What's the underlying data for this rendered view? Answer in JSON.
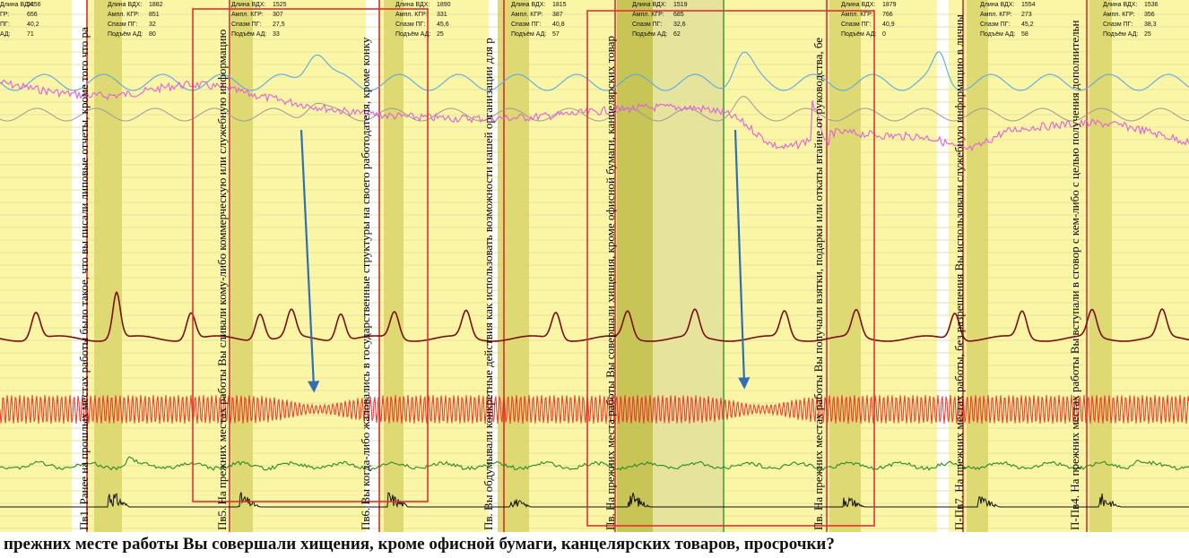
{
  "colors": {
    "band_light": "#fbf6a6",
    "band_olive": "#d8d468",
    "band_olive_dark": "#bdbc48",
    "selection_box": "#e03030",
    "arrow": "#2f6fb5",
    "breath_upper": "#5aa9e6",
    "breath_lower": "#9a9a9a",
    "skin_pink": "#e060d8",
    "cardio_dark": "#7a0e0e",
    "pressure_red": "#f02020",
    "plethysmo_green": "#2a8a2a",
    "motion_black": "#111111",
    "marker_red": "#d82020",
    "marker_green": "#2f9a3a"
  },
  "question_labels": [
    {
      "text": "Пв1. Ранее на прошлых местах работы было такое, что вы писали липовые отчеты, кроме того что ра"
    },
    {
      "text": "Пв5. На прежних местах работы Вы сливали кому-либо коммерческую или служебную информацию"
    },
    {
      "text": "Пв6. Вы когда-либо жаловались в государственные структуры на своего работодателя, кроме конку"
    },
    {
      "text": "Пв. Вы обдумывали конкретные действия как использовать возможности нашей организации для р"
    },
    {
      "text": "Пв. На прежних места работы Вы совершали хищения, кроме офисной бумаги, канцелярских товар"
    },
    {
      "text": "Пв. На прежних местах работы Вы получали взятки, подарки или откаты втайне от руководства, бе"
    },
    {
      "text": "П-Пв7. На прежних местах работы, без разрешения Вы использовали служебную информацию в личны"
    },
    {
      "text": "П-Пв4. На прежних местах работы Вы вступали в сговор с кем-либо с целью получения дополнительн"
    }
  ],
  "stat_blocks": [
    {
      "dlina": "1456",
      "ampl": "656",
      "spazm": "40,2",
      "podem": "71"
    },
    {
      "dlina": "1882",
      "ampl": "851",
      "spazm": "32",
      "podem": "80"
    },
    {
      "dlina": "1525",
      "ampl": "307",
      "spazm": "27,5",
      "podem": "33"
    },
    {
      "dlina": "1890",
      "ampl": "331",
      "spazm": "45,6",
      "podem": "25"
    },
    {
      "dlina": "1815",
      "ampl": "387",
      "spazm": "40,8",
      "podem": "57"
    },
    {
      "dlina": "1519",
      "ampl": "685",
      "spazm": "32,6",
      "podem": "62"
    },
    {
      "dlina": "1879",
      "ampl": "766",
      "spazm": "40,9",
      "podem": "0"
    },
    {
      "dlina": "1554",
      "ampl": "273",
      "spazm": "45,2",
      "podem": "58"
    },
    {
      "dlina": "1536",
      "ampl": "356",
      "spazm": "38,3",
      "podem": "25"
    }
  ],
  "stat_labels": {
    "dlina": "Длина ВДХ:",
    "ampl": "Ампл. КГР:",
    "spazm": "Спазм ПГ:",
    "podem": "Подъём АД:",
    "first_dlina": "Длина ВДХ:",
    "first_ampl": "ГР:",
    "first_spazm": "ПГ:",
    "first_podem": "АД:"
  },
  "caption": "прежних месте работы Вы совершали  хищения, кроме офисной бумаги, канцелярских товаров, просрочки?",
  "chart_data": {
    "type": "line",
    "title": "",
    "xlabel": "",
    "ylabel": "",
    "series": [
      {
        "shape": "periodic-wave with peak after questions",
        "color": "#5aa9e6"
      },
      {
        "shape": "periodic-wave",
        "color": "#9a9a9a"
      },
      {
        "shape": "drifting noisy trace with dips",
        "color": "#e060d8"
      },
      {
        "shape": "cardio peaks",
        "color": "#7a0e0e"
      },
      {
        "shape": "dense oscillation with waists at arrows",
        "color": "#f02020"
      },
      {
        "shape": "near-flat noise",
        "color": "#2a8a2a"
      },
      {
        "shape": "bursts after markers",
        "color": "#111111"
      }
    ],
    "highlighted_windows": 2,
    "arrow_count": 2
  }
}
